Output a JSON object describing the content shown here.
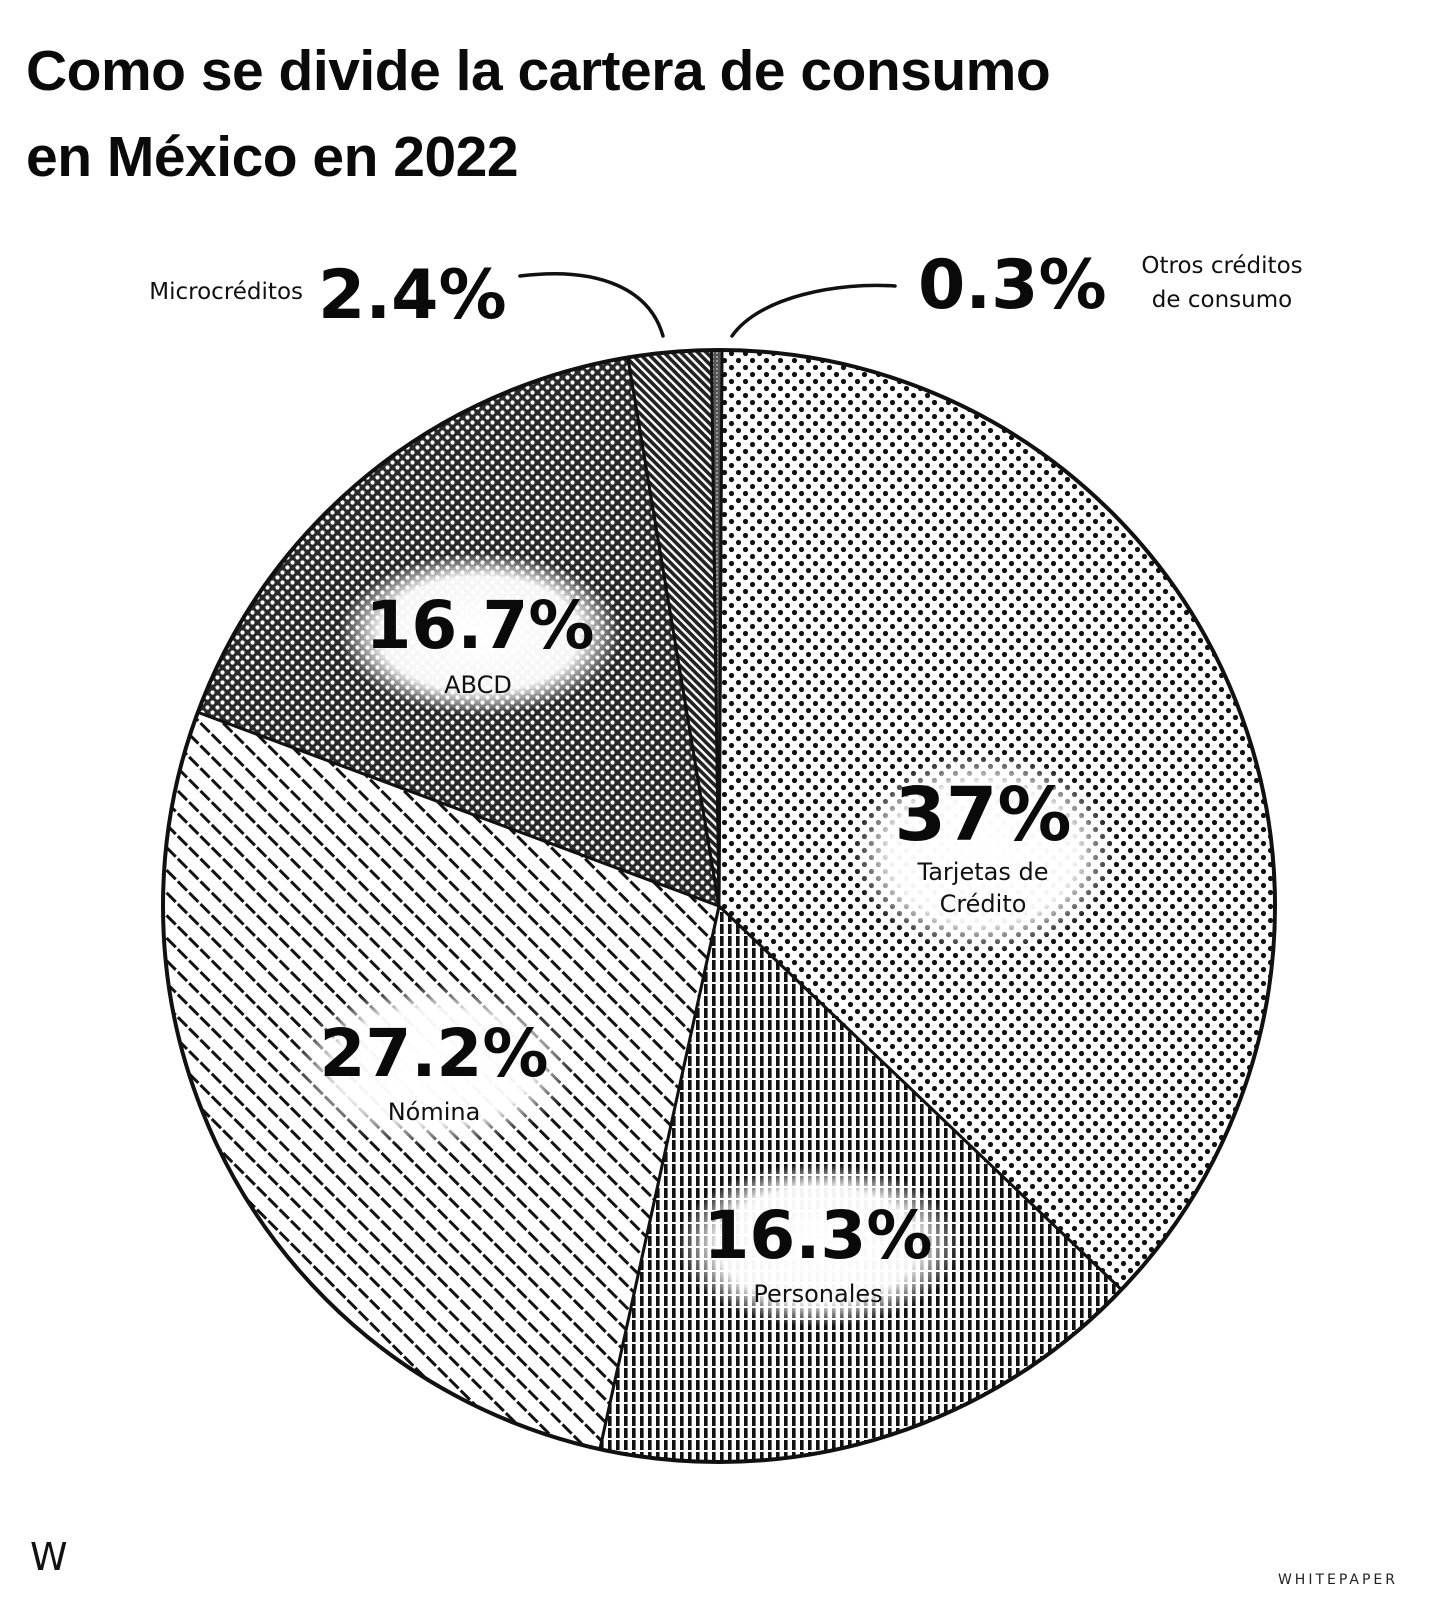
{
  "title_line1": "Como se divide la cartera de consumo",
  "title_line2": "en México en 2022",
  "brand": {
    "mark": "W",
    "name": "WHITEPAPER"
  },
  "chart_data": {
    "type": "pie",
    "title": "Como se divide la cartera de consumo en México en 2022",
    "unit": "%",
    "start": "12 o'clock",
    "direction": "clockwise",
    "slices": [
      {
        "label_lines": [
          "Tarjetas de",
          "Crédito"
        ],
        "value": 37,
        "value_label": "37%",
        "pattern": "dots-light"
      },
      {
        "label_lines": [
          "Personales"
        ],
        "value": 16.3,
        "value_label": "16.3%",
        "pattern": "vertical-lines"
      },
      {
        "label_lines": [
          "Nómina"
        ],
        "value": 27.2,
        "value_label": "27.2%",
        "pattern": "diagonal-dashes"
      },
      {
        "label_lines": [
          "ABCD"
        ],
        "value": 16.7,
        "value_label": "16.7%",
        "pattern": "dots-dense"
      },
      {
        "label_lines": [
          "Microcréditos"
        ],
        "value": 2.4,
        "value_label": "2.4%",
        "pattern": "diagonal-hatch-dark"
      },
      {
        "label_lines": [
          "Otros créditos",
          "de consumo"
        ],
        "value": 0.3,
        "value_label": "0.3%",
        "pattern": "crosshatch-dark"
      }
    ]
  }
}
